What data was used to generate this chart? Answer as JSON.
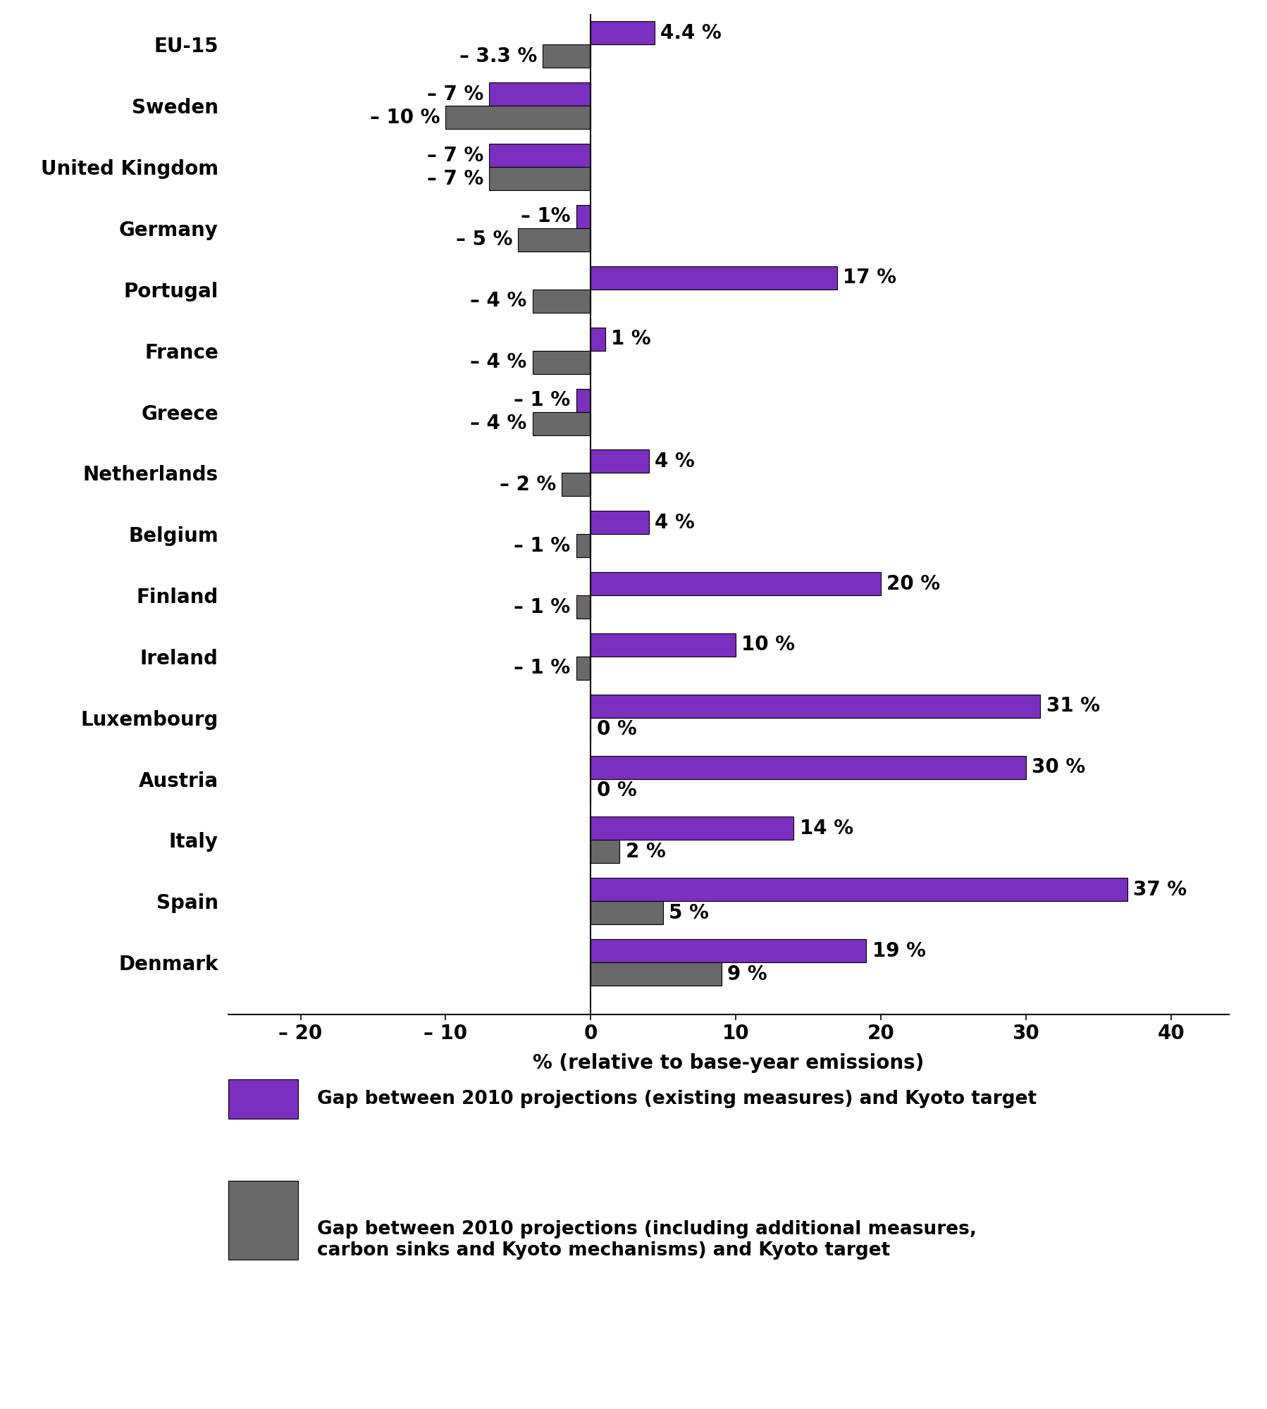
{
  "countries": [
    "EU-15",
    "Sweden",
    "United Kingdom",
    "Germany",
    "Portugal",
    "France",
    "Greece",
    "Netherlands",
    "Belgium",
    "Finland",
    "Ireland",
    "Luxembourg",
    "Austria",
    "Italy",
    "Spain",
    "Denmark"
  ],
  "purple_values": [
    4.4,
    -7,
    -7,
    -1,
    17,
    1,
    -1,
    4,
    4,
    20,
    10,
    31,
    30,
    14,
    37,
    19
  ],
  "gray_values": [
    -3.3,
    -10,
    -7,
    -5,
    -4,
    -4,
    -4,
    -2,
    -1,
    -1,
    -1,
    0,
    0,
    2,
    5,
    9
  ],
  "purple_labels": [
    "4.4 %",
    "– 7 %",
    "– 7 %",
    "– 1%",
    "17 %",
    "1 %",
    "– 1 %",
    "4 %",
    "4 %",
    "20 %",
    "10 %",
    "31 %",
    "30 %",
    "14 %",
    "37 %",
    "19 %"
  ],
  "gray_labels": [
    "– 3.3 %",
    "– 10 %",
    "– 7 %",
    "– 5 %",
    "– 4 %",
    "– 4 %",
    "– 4 %",
    "– 2 %",
    "– 1 %",
    "– 1 %",
    "– 1 %",
    "0 %",
    "0 %",
    "2 %",
    "5 %",
    "9 %"
  ],
  "purple_color": "#7B2FBE",
  "gray_color": "#696969",
  "bar_height": 0.38,
  "xlim": [
    -25,
    44
  ],
  "xticks": [
    -20,
    -10,
    0,
    10,
    20,
    30,
    40
  ],
  "xtick_labels": [
    "– 20",
    "– 10",
    "0",
    "10",
    "20",
    "30",
    "40"
  ],
  "xlabel": "% (relative to base-year emissions)",
  "legend1": "Gap between 2010 projections (existing measures) and Kyoto target",
  "legend2": "Gap between 2010 projections (including additional measures,\ncarbon sinks and Kyoto mechanisms) and Kyoto target",
  "background_color": "#ffffff",
  "label_fontsize": 20,
  "tick_fontsize": 20,
  "country_fontsize": 20,
  "legend_fontsize": 19
}
